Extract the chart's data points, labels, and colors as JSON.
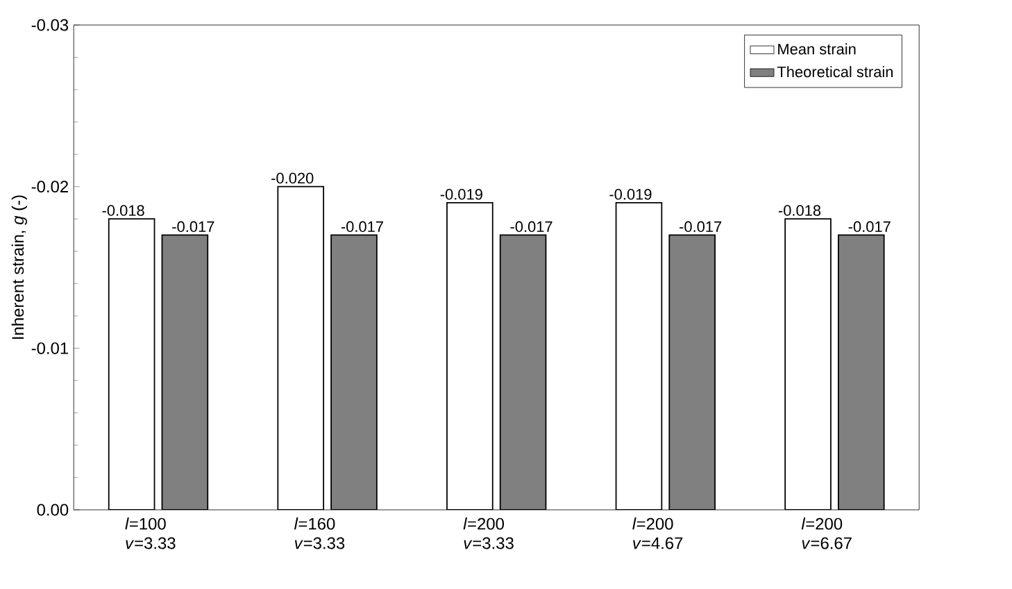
{
  "chart_data": {
    "type": "bar",
    "ylabel": "Inherent strain, *g* (-)",
    "categories": [
      "*l*=100 *v*=3.33",
      "*l*=160 *v*=3.33",
      "*l*=200 *v*=3.33",
      "*l*=200 *v*=4.67",
      "*l*=200 *v*=6.67"
    ],
    "series": [
      {
        "name": "Mean strain",
        "color": "#ffffff",
        "values": [
          -0.018,
          -0.02,
          -0.019,
          -0.019,
          -0.018
        ],
        "value_labels": [
          "-0.018",
          "-0.020",
          "-0.019",
          "-0.019",
          "-0.018"
        ]
      },
      {
        "name": "Theoretical strain",
        "color": "#808080",
        "values": [
          -0.017,
          -0.017,
          -0.017,
          -0.017,
          -0.017
        ],
        "value_labels": [
          "-0.017",
          "-0.017",
          "-0.017",
          "-0.017",
          "-0.017"
        ]
      }
    ],
    "ylim": [
      0,
      -0.03
    ],
    "yticks": [
      {
        "value": 0,
        "label": "0.00"
      },
      {
        "value": -0.01,
        "label": "-0.01"
      },
      {
        "value": -0.02,
        "label": "-0.02"
      },
      {
        "value": -0.03,
        "label": "-0.03"
      }
    ],
    "legend": "top right",
    "grid": false
  }
}
